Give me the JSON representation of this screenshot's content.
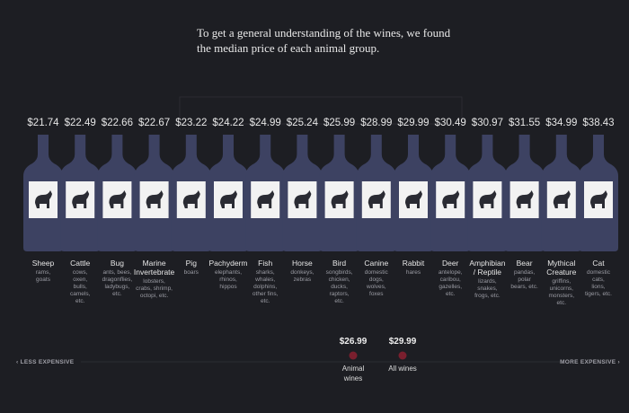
{
  "intro": [
    "To get a general understanding of the wines, we found",
    "the median price of each animal group."
  ],
  "bottles": [
    {
      "price": "$21.74",
      "name": [
        "Sheep"
      ],
      "examples": [
        "rams,",
        "goats"
      ]
    },
    {
      "price": "$22.49",
      "name": [
        "Cattle"
      ],
      "examples": [
        "cows,",
        "oxen,",
        "bulls,",
        "camels,",
        "etc."
      ]
    },
    {
      "price": "$22.66",
      "name": [
        "Bug"
      ],
      "examples": [
        "ants, bees,",
        "dragonflies,",
        "ladybugs,",
        "etc."
      ]
    },
    {
      "price": "$22.67",
      "name": [
        "Marine",
        "Invertebrate"
      ],
      "examples": [
        "lobsters,",
        "crabs, shrimp,",
        "octopi, etc."
      ]
    },
    {
      "price": "$23.22",
      "name": [
        "Pig"
      ],
      "examples": [
        "boars"
      ]
    },
    {
      "price": "$24.22",
      "name": [
        "Pachyderm"
      ],
      "examples": [
        "elephants,",
        "rhinos,",
        "hippos"
      ]
    },
    {
      "price": "$24.99",
      "name": [
        "Fish"
      ],
      "examples": [
        "sharks,",
        "whales,",
        "dolphins,",
        "other fins,",
        "etc."
      ]
    },
    {
      "price": "$25.24",
      "name": [
        "Horse"
      ],
      "examples": [
        "donkeys,",
        "zebras"
      ]
    },
    {
      "price": "$25.99",
      "name": [
        "Bird"
      ],
      "examples": [
        "songbirds,",
        "chicken,",
        "ducks,",
        "raptors,",
        "etc."
      ]
    },
    {
      "price": "$28.99",
      "name": [
        "Canine"
      ],
      "examples": [
        "domestic",
        "dogs,",
        "wolves,",
        "foxes"
      ]
    },
    {
      "price": "$29.99",
      "name": [
        "Rabbit"
      ],
      "examples": [
        "hares"
      ]
    },
    {
      "price": "$30.49",
      "name": [
        "Deer"
      ],
      "examples": [
        "antelope,",
        "caribou,",
        "gazelles,",
        "etc."
      ]
    },
    {
      "price": "$30.97",
      "name": [
        "Amphibian",
        "/ Reptile"
      ],
      "examples": [
        "lizards,",
        "snakes,",
        "frogs, etc."
      ]
    },
    {
      "price": "$31.55",
      "name": [
        "Bear"
      ],
      "examples": [
        "pandas,",
        "polar",
        "bears, etc."
      ]
    },
    {
      "price": "$34.99",
      "name": [
        "Mythical",
        "Creature"
      ],
      "examples": [
        "griffins,",
        "unicorns,",
        "monsters,",
        "etc."
      ]
    },
    {
      "price": "$38.43",
      "name": [
        "Cat"
      ],
      "examples": [
        "domestic",
        "cats,",
        "lions,",
        "tigers, etc."
      ]
    }
  ],
  "scale": {
    "left": "‹ LESS EXPENSIVE",
    "right": "MORE EXPENSIVE ›",
    "markers": [
      {
        "price": "$26.99",
        "label": [
          "Animal",
          "wines"
        ]
      },
      {
        "price": "$29.99",
        "label": [
          "All wines"
        ]
      }
    ]
  }
}
